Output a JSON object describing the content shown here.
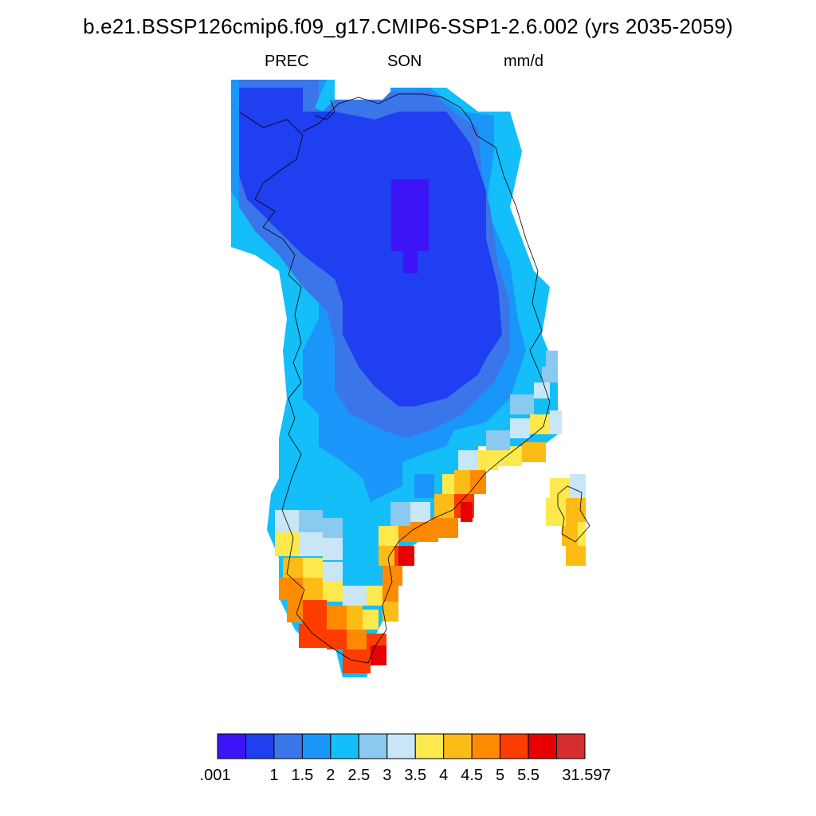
{
  "header": {
    "title": "b.e21.BSSP126cmip6.f09_g17.CMIP6-SSP1-2.6.002 (yrs 2035-2059)",
    "variable": "PREC",
    "season": "SON",
    "units": "mm/d"
  },
  "colorbar": {
    "labels": [
      ".001",
      "1",
      "1.5",
      "2",
      "2.5",
      "3",
      "3.5",
      "4",
      "4.5",
      "5",
      "5.5",
      "31.597"
    ],
    "colors": [
      "#3c14f5",
      "#1f3ff0",
      "#3a76ea",
      "#1a96fa",
      "#14bef8",
      "#8ac9f0",
      "#c9e6f6",
      "#fde84e",
      "#fcbc15",
      "#fd8a00",
      "#fc3c00",
      "#e80000",
      "#d42e2e"
    ]
  }
}
